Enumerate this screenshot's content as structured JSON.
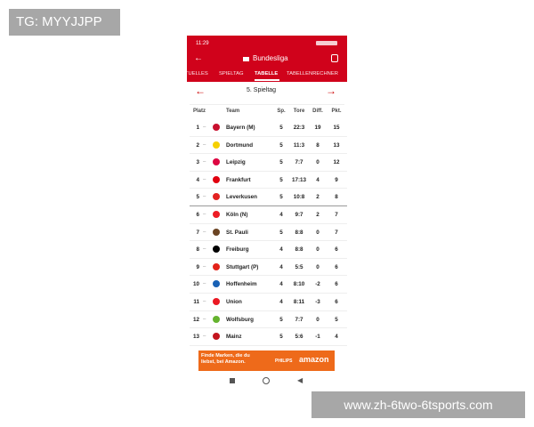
{
  "overlay": {
    "badge": "TG: MYYJJPP",
    "watermark": "www.zh-6two-6tsports.com"
  },
  "status_bar": {
    "time": "11:29"
  },
  "header": {
    "title": "Bundesliga"
  },
  "tabs": [
    "TUELLES",
    "SPIELTAG",
    "TABELLE",
    "TABELLENRECHNER"
  ],
  "matchday": "5. Spieltag",
  "table": {
    "columns": [
      "Platz",
      "Team",
      "Sp.",
      "Tore",
      "Diff.",
      "Pkt."
    ],
    "rows": [
      [
        "1",
        "Bayern (M)",
        "5",
        "22:3",
        "19",
        "15"
      ],
      [
        "2",
        "Dortmund",
        "5",
        "11:3",
        "8",
        "13"
      ],
      [
        "3",
        "Leipzig",
        "5",
        "7:7",
        "0",
        "12"
      ],
      [
        "4",
        "Frankfurt",
        "5",
        "17:13",
        "4",
        "9"
      ],
      [
        "5",
        "Leverkusen",
        "5",
        "10:8",
        "2",
        "8"
      ],
      [
        "6",
        "Köln (N)",
        "4",
        "9:7",
        "2",
        "7"
      ],
      [
        "7",
        "St. Pauli",
        "5",
        "8:8",
        "0",
        "7"
      ],
      [
        "8",
        "Freiburg",
        "4",
        "8:8",
        "0",
        "6"
      ],
      [
        "9",
        "Stuttgart (P)",
        "4",
        "5:5",
        "0",
        "6"
      ],
      [
        "10",
        "Hoffenheim",
        "4",
        "8:10",
        "-2",
        "6"
      ],
      [
        "11",
        "Union",
        "4",
        "8:11",
        "-3",
        "6"
      ],
      [
        "12",
        "Wolfsburg",
        "5",
        "7:7",
        "0",
        "5"
      ],
      [
        "13",
        "Mainz",
        "5",
        "5:6",
        "-1",
        "4"
      ]
    ]
  },
  "ad": {
    "text": "Finde Marken, die du liebst, bei Amazon.",
    "brand": "PHILIPS",
    "logo": "amazon"
  }
}
